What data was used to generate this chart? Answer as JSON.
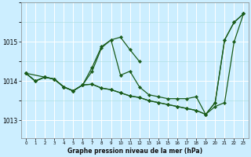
{
  "background_color": "#cceeff",
  "grid_color_major": "#ffffff",
  "grid_color_minor": "#aadddd",
  "line_color": "#1a5c1a",
  "title": "Graphe pression niveau de la mer (hPa)",
  "xlim": [
    -0.5,
    23.5
  ],
  "ylim": [
    1012.55,
    1016.0
  ],
  "yticks": [
    1013,
    1014,
    1015
  ],
  "xticks": [
    0,
    1,
    2,
    3,
    4,
    5,
    6,
    7,
    8,
    9,
    10,
    11,
    12,
    13,
    14,
    15,
    16,
    17,
    18,
    19,
    20,
    21,
    22,
    23
  ],
  "series": [
    {
      "x": [
        0,
        1,
        2,
        3,
        4,
        5,
        6,
        7,
        8,
        9,
        10,
        11,
        12,
        13,
        14,
        15,
        16,
        17,
        18,
        19,
        20,
        21,
        22,
        23
      ],
      "y": [
        1014.2,
        1014.0,
        1014.1,
        1014.05,
        1013.85,
        1013.75,
        1013.9,
        1014.25,
        1014.85,
        1015.05,
        1014.15,
        1014.25,
        1013.85,
        1013.65,
        1013.6,
        1013.55,
        1013.55,
        1013.55,
        1013.6,
        1013.15,
        1013.45,
        1015.05,
        1015.5,
        1015.72
      ]
    },
    {
      "x": [
        0,
        1,
        2,
        3,
        4,
        5,
        6,
        7,
        8,
        9,
        10,
        11,
        12,
        13,
        14,
        15,
        16,
        17,
        18,
        19,
        20,
        21,
        22,
        23
      ],
      "y": [
        1014.2,
        1014.0,
        1014.1,
        1014.05,
        1013.85,
        1013.75,
        1013.9,
        1013.92,
        1013.82,
        1013.78,
        1013.7,
        1013.62,
        1013.58,
        1013.5,
        1013.45,
        1013.4,
        1013.35,
        1013.3,
        1013.25,
        1013.15,
        1013.45,
        1015.05,
        1015.5,
        1015.72
      ]
    },
    {
      "x": [
        0,
        2,
        3,
        4,
        5,
        6,
        7,
        8,
        9,
        10,
        11,
        12
      ],
      "y": [
        1014.2,
        1014.1,
        1014.05,
        1013.85,
        1013.75,
        1013.9,
        1014.35,
        1014.88,
        1015.05,
        1015.12,
        1014.8,
        1014.5
      ]
    },
    {
      "x": [
        0,
        1,
        2,
        3,
        4,
        5,
        6,
        7,
        8,
        9,
        10,
        11,
        12,
        13,
        14,
        15,
        16,
        17,
        18,
        19,
        20,
        21,
        22,
        23
      ],
      "y": [
        1014.2,
        1014.0,
        1014.1,
        1014.05,
        1013.85,
        1013.75,
        1013.9,
        1013.92,
        1013.82,
        1013.78,
        1013.7,
        1013.62,
        1013.58,
        1013.5,
        1013.45,
        1013.4,
        1013.35,
        1013.3,
        1013.25,
        1013.15,
        1013.35,
        1013.45,
        1015.0,
        1015.72
      ]
    }
  ]
}
